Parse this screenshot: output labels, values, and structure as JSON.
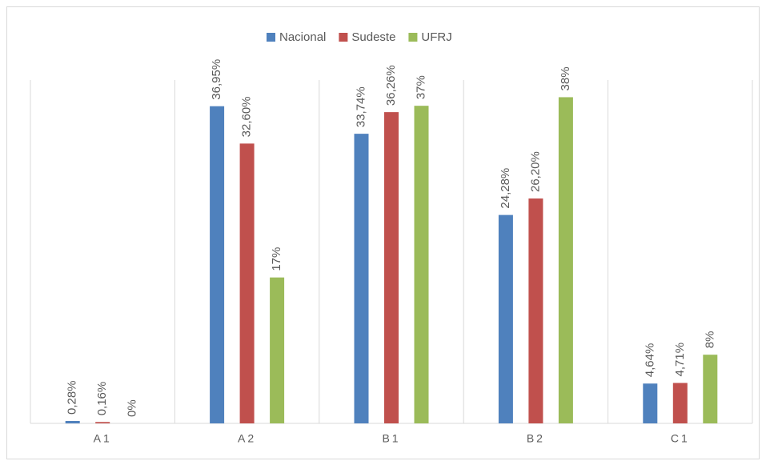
{
  "chart_data": {
    "type": "bar",
    "categories": [
      "A1",
      "A2",
      "B1",
      "B2",
      "C1"
    ],
    "series": [
      {
        "name": "Nacional",
        "color": "#4f81bd",
        "values": [
          0.28,
          36.95,
          33.74,
          24.28,
          4.64
        ],
        "value_labels": [
          "0,28%",
          "36,95%",
          "33,74%",
          "24,28%",
          "4,64%"
        ]
      },
      {
        "name": "Sudeste",
        "color": "#c0504d",
        "values": [
          0.16,
          32.6,
          36.26,
          26.2,
          4.71
        ],
        "value_labels": [
          "0,16%",
          "32,60%",
          "36,26%",
          "26,20%",
          "4,71%"
        ]
      },
      {
        "name": "UFRJ",
        "color": "#9bbb59",
        "values": [
          0,
          17,
          37,
          38,
          8
        ],
        "value_labels": [
          "0%",
          "17%",
          "37%",
          "38%",
          "8%"
        ]
      }
    ],
    "ylim": [
      0,
      40
    ],
    "legend": "top"
  }
}
